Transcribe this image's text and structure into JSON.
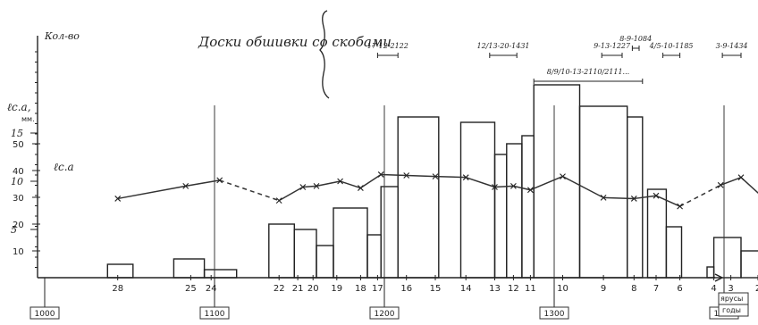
{
  "chart_data": {
    "type": "bar",
    "title": "Доски обшивки со скобами",
    "ylabel": "Кол-во",
    "ylabel_right_top": "ℓс.а,",
    "ylabel_right_unit": "мм.",
    "xlabel": "ярусы",
    "xlabel2": "годы",
    "series_label": "ℓс.а",
    "left_ticks": [
      10,
      20,
      30,
      40,
      50
    ],
    "mm_ticks": [
      5,
      10,
      15
    ],
    "year_labels": [
      "1000",
      "1100",
      "1200",
      "1300",
      "1400"
    ],
    "year_positions": [
      1000,
      1100,
      1200,
      1300,
      1400
    ],
    "tier_labels": [
      {
        "label": "28",
        "pos": 1043
      },
      {
        "label": "25",
        "pos": 1086
      },
      {
        "label": "24",
        "pos": 1098
      },
      {
        "label": "22",
        "pos": 1138
      },
      {
        "label": "21",
        "pos": 1149
      },
      {
        "label": "20",
        "pos": 1158
      },
      {
        "label": "19",
        "pos": 1172
      },
      {
        "label": "18",
        "pos": 1186
      },
      {
        "label": "17",
        "pos": 1196
      },
      {
        "label": "16",
        "pos": 1213
      },
      {
        "label": "15",
        "pos": 1230
      },
      {
        "label": "14",
        "pos": 1248
      },
      {
        "label": "13",
        "pos": 1265
      },
      {
        "label": "12",
        "pos": 1276
      },
      {
        "label": "11",
        "pos": 1286
      },
      {
        "label": "10",
        "pos": 1305
      },
      {
        "label": "9",
        "pos": 1329
      },
      {
        "label": "8",
        "pos": 1347
      },
      {
        "label": "7",
        "pos": 1360
      },
      {
        "label": "6",
        "pos": 1374
      },
      {
        "label": "4",
        "pos": 1394
      },
      {
        "label": "3",
        "pos": 1404
      },
      {
        "label": "2",
        "pos": 1420
      }
    ],
    "bars": [
      {
        "start": 1037,
        "end": 1052,
        "value": 5
      },
      {
        "start": 1076,
        "end": 1094,
        "value": 7
      },
      {
        "start": 1094,
        "end": 1113,
        "value": 3
      },
      {
        "start": 1132,
        "end": 1147,
        "value": 20
      },
      {
        "start": 1147,
        "end": 1160,
        "value": 18
      },
      {
        "start": 1160,
        "end": 1170,
        "value": 12
      },
      {
        "start": 1170,
        "end": 1190,
        "value": 26
      },
      {
        "start": 1190,
        "end": 1198,
        "value": 16
      },
      {
        "start": 1198,
        "end": 1208,
        "value": 34
      },
      {
        "start": 1208,
        "end": 1232,
        "value": 60
      },
      {
        "start": 1245,
        "end": 1265,
        "value": 58
      },
      {
        "start": 1265,
        "end": 1272,
        "value": 46
      },
      {
        "start": 1272,
        "end": 1281,
        "value": 50
      },
      {
        "start": 1281,
        "end": 1288,
        "value": 53
      },
      {
        "start": 1288,
        "end": 1315,
        "value": 72
      },
      {
        "start": 1315,
        "end": 1343,
        "value": 64
      },
      {
        "start": 1343,
        "end": 1352,
        "value": 60
      },
      {
        "start": 1355,
        "end": 1366,
        "value": 33
      },
      {
        "start": 1366,
        "end": 1375,
        "value": 19
      },
      {
        "start": 1390,
        "end": 1394,
        "value": 4
      },
      {
        "start": 1394,
        "end": 1410,
        "value": 15
      },
      {
        "start": 1410,
        "end": 1421,
        "value": 10
      }
    ],
    "line_points": [
      {
        "x": 1043,
        "y": 8.2,
        "dash_before": false
      },
      {
        "x": 1083,
        "y": 9.5,
        "dash_before": false
      },
      {
        "x": 1103,
        "y": 10.1,
        "dash_before": false
      },
      {
        "x": 1138,
        "y": 8.0,
        "dash_before": true
      },
      {
        "x": 1152,
        "y": 9.4,
        "dash_before": false
      },
      {
        "x": 1160,
        "y": 9.5,
        "dash_before": false
      },
      {
        "x": 1174,
        "y": 10.0,
        "dash_before": false
      },
      {
        "x": 1186,
        "y": 9.3,
        "dash_before": false
      },
      {
        "x": 1198,
        "y": 10.7,
        "dash_before": false
      },
      {
        "x": 1213,
        "y": 10.6,
        "dash_before": false
      },
      {
        "x": 1230,
        "y": 10.5,
        "dash_before": false
      },
      {
        "x": 1248,
        "y": 10.4,
        "dash_before": false
      },
      {
        "x": 1265,
        "y": 9.4,
        "dash_before": false
      },
      {
        "x": 1276,
        "y": 9.5,
        "dash_before": false
      },
      {
        "x": 1286,
        "y": 9.1,
        "dash_before": false
      },
      {
        "x": 1305,
        "y": 10.5,
        "dash_before": false
      },
      {
        "x": 1329,
        "y": 8.3,
        "dash_before": false
      },
      {
        "x": 1347,
        "y": 8.2,
        "dash_before": false
      },
      {
        "x": 1360,
        "y": 8.5,
        "dash_before": false
      },
      {
        "x": 1374,
        "y": 7.4,
        "dash_before": false
      },
      {
        "x": 1398,
        "y": 9.6,
        "dash_before": true
      },
      {
        "x": 1410,
        "y": 10.4,
        "dash_before": false
      },
      {
        "x": 1425,
        "y": 8.0,
        "dash_before": false
      }
    ],
    "annotations": [
      {
        "text": "17-12-2122",
        "from": 1196,
        "to": 1208,
        "y": 56
      },
      {
        "text": "12/13-20-1431",
        "from": 1262,
        "to": 1278,
        "y": 56
      },
      {
        "text": "8/9/10-13-2110/2111...",
        "from": 1288,
        "to": 1352,
        "y": 85
      },
      {
        "text": "9-13-1227",
        "from": 1328,
        "to": 1340,
        "y": 56
      },
      {
        "text": "8-9-1084",
        "from": 1346,
        "to": 1350,
        "y": 48
      },
      {
        "text": "4/5-10-1185",
        "from": 1364,
        "to": 1374,
        "y": 56
      },
      {
        "text": "3-9-1434",
        "from": 1399,
        "to": 1410,
        "y": 56
      }
    ],
    "grid": false
  }
}
